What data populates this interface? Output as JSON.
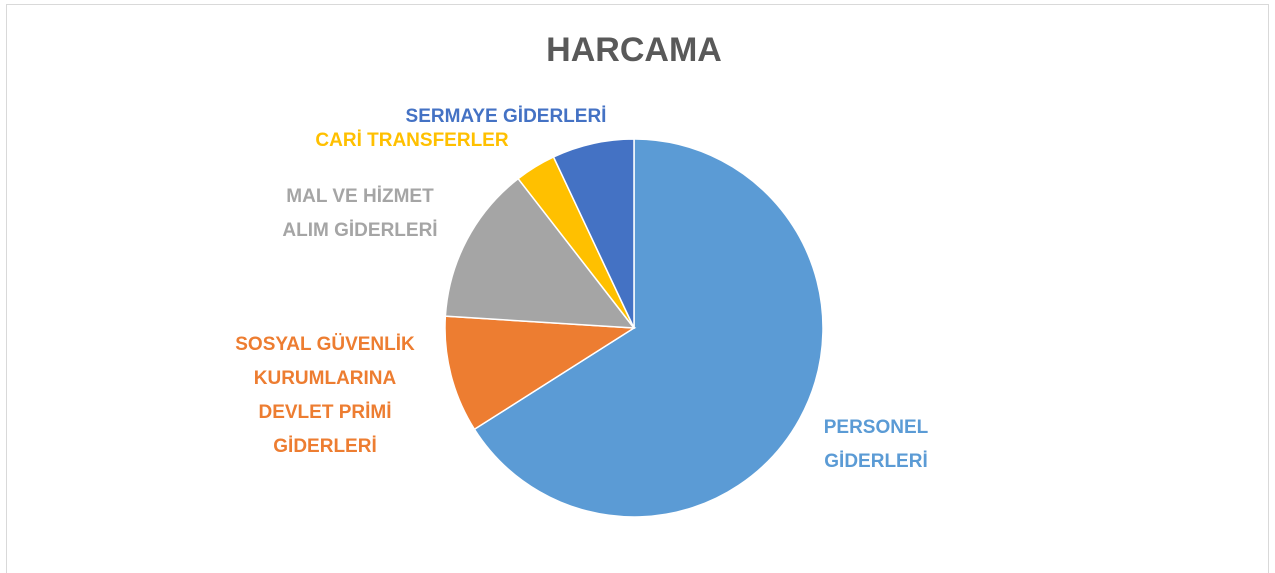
{
  "chart_data": {
    "type": "pie",
    "title": "HARCAMA",
    "categories": [
      [
        "PERSONEL",
        "GİDERLERİ"
      ],
      [
        "SOSYAL GÜVENLİK",
        "KURUMLARINA",
        "DEVLET PRİMİ",
        "GİDERLERİ"
      ],
      [
        "MAL VE HİZMET",
        "ALIM GİDERLERİ"
      ],
      [
        "CARİ TRANSFERLER"
      ],
      [
        "SERMAYE GİDERLERİ"
      ]
    ],
    "values": [
      66,
      10,
      13.5,
      3.5,
      7
    ],
    "colors": [
      "#5b9bd5",
      "#ed7d31",
      "#a5a5a5",
      "#ffc000",
      "#4472c4"
    ]
  }
}
